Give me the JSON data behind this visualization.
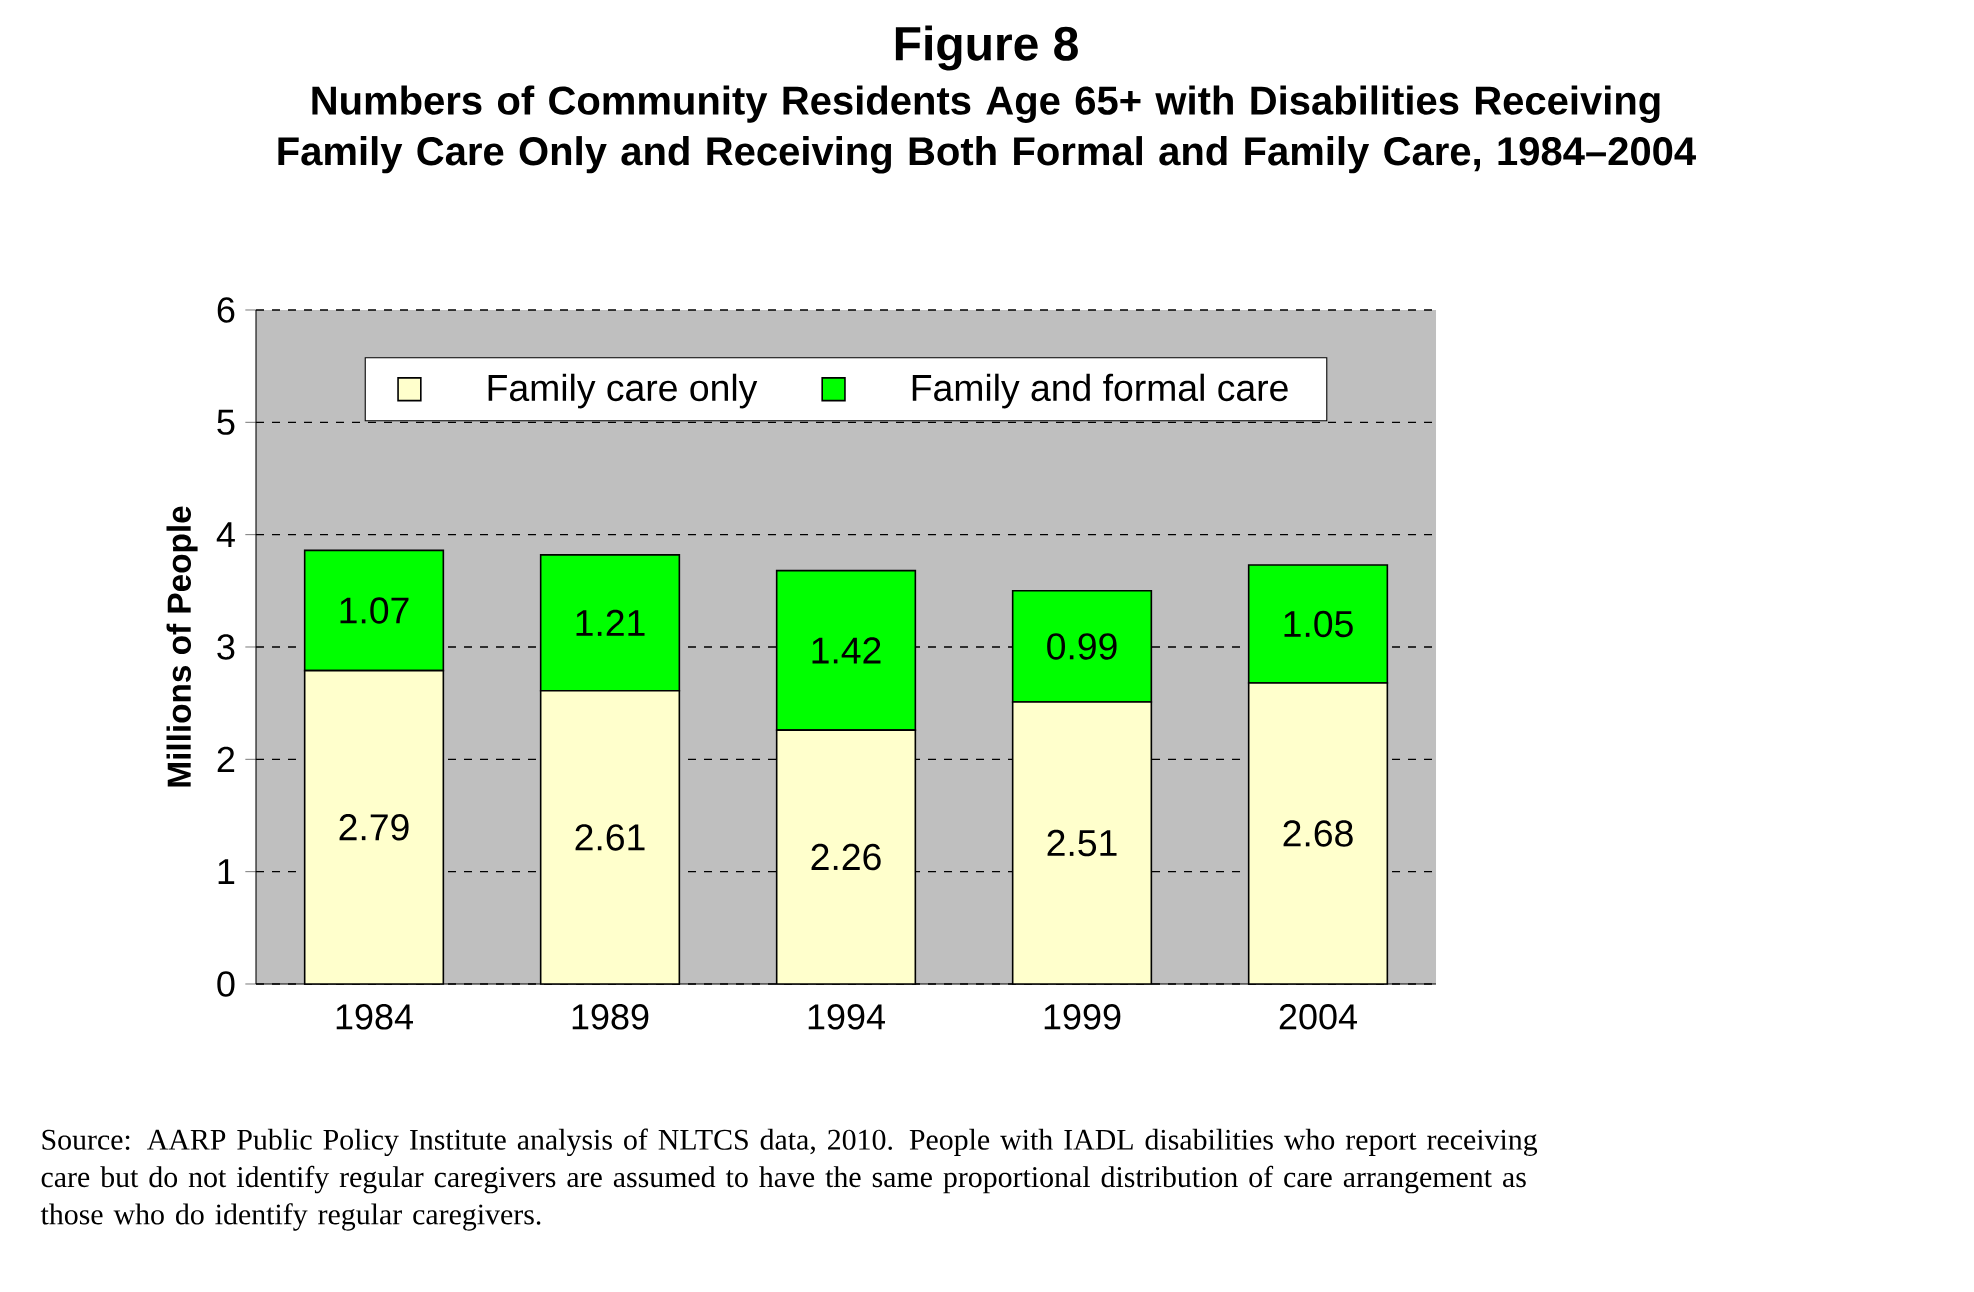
{
  "chart_data": {
    "type": "bar",
    "stacked": true,
    "title": "Figure 8",
    "subtitle": "Numbers of Community Residents Age 65+ with Disabilities Receiving Family Care Only and Receiving Both Formal and Family Care, 1984–2004",
    "ylabel": "Millions of People",
    "categories": [
      "1984",
      "1989",
      "1994",
      "1999",
      "2004"
    ],
    "series": [
      {
        "name": "Family care only",
        "color": "#ffffcc",
        "values": [
          2.79,
          2.61,
          2.26,
          2.51,
          2.68
        ]
      },
      {
        "name": "Family and formal care",
        "color": "#00ff00",
        "values": [
          1.07,
          1.21,
          1.42,
          0.99,
          1.05
        ]
      }
    ],
    "ylim": [
      0,
      6
    ],
    "yticks": [
      0,
      1,
      2,
      3,
      4,
      5,
      6
    ],
    "grid": "y",
    "legend": "top",
    "data_labels": true,
    "annotations": [
      "Source: AARP Public Policy Institute analysis of NLTCS data, 2010. People with IADL disabilities who report receiving care but do not identify regular caregivers are assumed to have the same proportional distribution of care arrangement as those who do identify regular caregivers."
    ]
  }
}
